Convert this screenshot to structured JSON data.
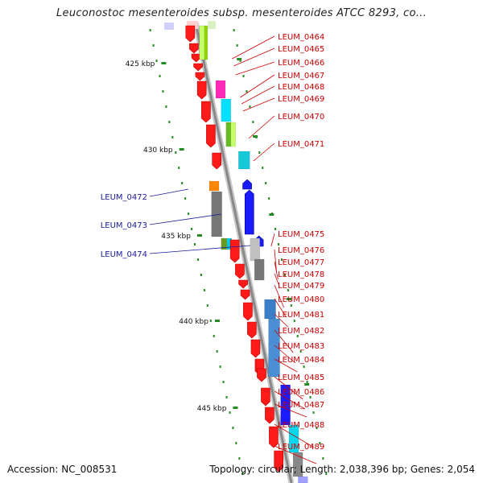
{
  "title": "Leuconostoc mesenteroides subsp. mesenteroides ATCC 8293, co...",
  "footer": {
    "accession": "Accession: NC_008531",
    "topology": "Topology: circular; Length: 2,038,396 bp; Genes: 2,054"
  },
  "colors": {
    "forward_gene": "#ff1a1a",
    "reverse_gene": "#1a1aff",
    "backbone": "#888888",
    "tick": "#228b22",
    "label_forward": "#cc0000",
    "label_reverse": "#1a1a9a"
  },
  "scale_labels": [
    "425 kbp",
    "430 kbp",
    "435 kbp",
    "440 kbp",
    "445 kbp"
  ],
  "genes_right": [
    "LEUM_0464",
    "LEUM_0465",
    "LEUM_0466",
    "LEUM_0467",
    "LEUM_0468",
    "LEUM_0469",
    "LEUM_0470",
    "LEUM_0471",
    "LEUM_0475",
    "LEUM_0476",
    "LEUM_0477",
    "LEUM_0478",
    "LEUM_0479",
    "LEUM_0480",
    "LEUM_0481",
    "LEUM_0482",
    "LEUM_0483",
    "LEUM_0484",
    "LEUM_0485",
    "LEUM_0486",
    "LEUM_0487",
    "LEUM_0488",
    "LEUM_0489"
  ],
  "genes_left": [
    "LEUM_0472",
    "LEUM_0473",
    "LEUM_0474"
  ]
}
